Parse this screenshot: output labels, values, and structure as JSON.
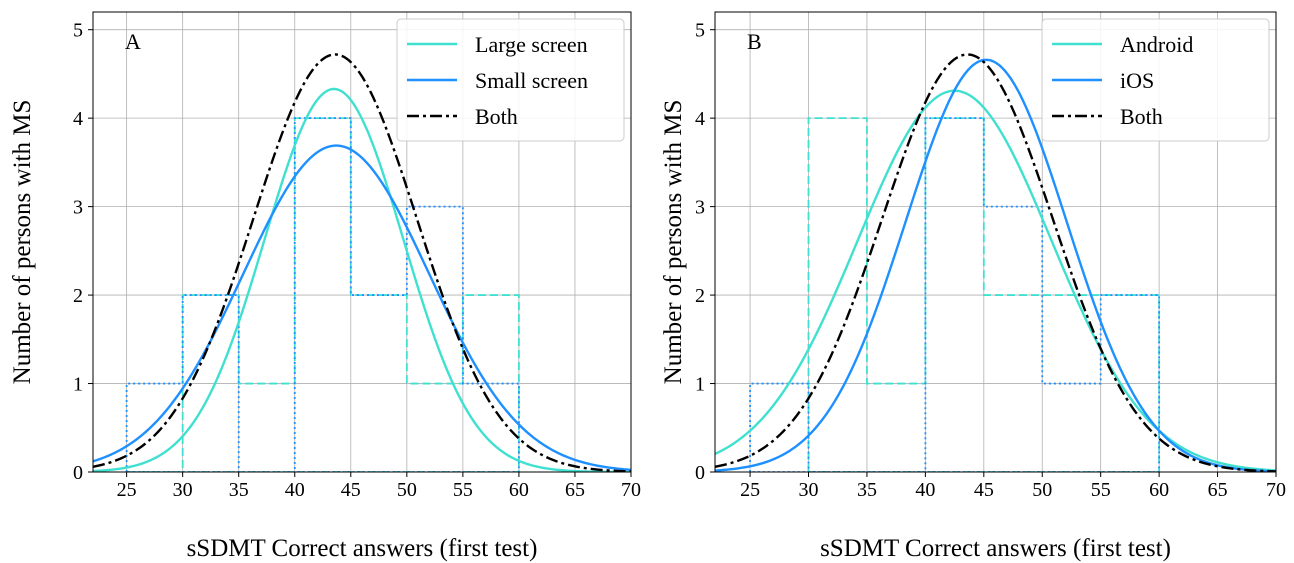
{
  "figure": {
    "panels": [
      "A",
      "B"
    ]
  },
  "colors": {
    "turquoise": "#40e0d0",
    "blue": "#1e90ff",
    "both": "#000000",
    "grid": "#b0b0b0"
  },
  "chart_data": [
    {
      "type": "line",
      "panel_label": "A",
      "title": "",
      "xlabel": "sSDMT Correct answers (first test)",
      "ylabel": "Number of persons with MS",
      "xlim": [
        22,
        70
      ],
      "ylim": [
        0,
        5.2
      ],
      "xticks": [
        "25",
        "30",
        "35",
        "40",
        "45",
        "50",
        "55",
        "60",
        "65",
        "70"
      ],
      "yticks": [
        "0",
        "1",
        "2",
        "3",
        "4",
        "5"
      ],
      "grid": true,
      "legend_position": "top-right",
      "series": [
        {
          "name": "Large screen",
          "kind": "normal-curve",
          "color": "turquoise",
          "style": "solid",
          "mean": 43.5,
          "sd": 6.2,
          "peak": 4.33
        },
        {
          "name": "Small screen",
          "kind": "normal-curve",
          "color": "blue",
          "style": "solid",
          "mean": 43.7,
          "sd": 8.3,
          "peak": 3.69
        },
        {
          "name": "Both",
          "kind": "normal-curve",
          "color": "both",
          "style": "dashdot",
          "mean": 43.6,
          "sd": 7.3,
          "peak": 4.72
        }
      ],
      "histograms": [
        {
          "color": "turquoise",
          "style": "dashed",
          "bin_edges": [
            25,
            30,
            35,
            40,
            45,
            50,
            55,
            60
          ],
          "counts": [
            0,
            2,
            1,
            4,
            2,
            1,
            2
          ]
        },
        {
          "color": "blue",
          "style": "dotted",
          "bin_edges": [
            25,
            30,
            35,
            40,
            45,
            50,
            55,
            60
          ],
          "counts": [
            1,
            2,
            0,
            4,
            2,
            3,
            1
          ]
        }
      ]
    },
    {
      "type": "line",
      "panel_label": "B",
      "title": "",
      "xlabel": "sSDMT Correct answers (first test)",
      "ylabel": "Number of persons with MS",
      "xlim": [
        22,
        70
      ],
      "ylim": [
        0,
        5.2
      ],
      "xticks": [
        "25",
        "30",
        "35",
        "40",
        "45",
        "50",
        "55",
        "60",
        "65",
        "70"
      ],
      "yticks": [
        "0",
        "1",
        "2",
        "3",
        "4",
        "5"
      ],
      "grid": true,
      "legend_position": "top-right",
      "series": [
        {
          "name": "Android",
          "kind": "normal-curve",
          "color": "turquoise",
          "style": "solid",
          "mean": 42.5,
          "sd": 8.3,
          "peak": 4.31
        },
        {
          "name": "iOS",
          "kind": "normal-curve",
          "color": "blue",
          "style": "solid",
          "mean": 45.2,
          "sd": 6.9,
          "peak": 4.66
        },
        {
          "name": "Both",
          "kind": "normal-curve",
          "color": "both",
          "style": "dashdot",
          "mean": 43.6,
          "sd": 7.3,
          "peak": 4.72
        }
      ],
      "histograms": [
        {
          "color": "turquoise",
          "style": "dashed",
          "bin_edges": [
            30,
            35,
            40,
            45,
            50,
            55,
            60
          ],
          "counts": [
            4,
            1,
            4,
            2,
            2,
            2
          ]
        },
        {
          "color": "blue",
          "style": "dotted",
          "bin_edges": [
            25,
            30,
            35,
            40,
            45,
            50,
            55,
            60
          ],
          "counts": [
            1,
            0,
            0,
            4,
            3,
            1,
            2
          ]
        }
      ]
    }
  ]
}
